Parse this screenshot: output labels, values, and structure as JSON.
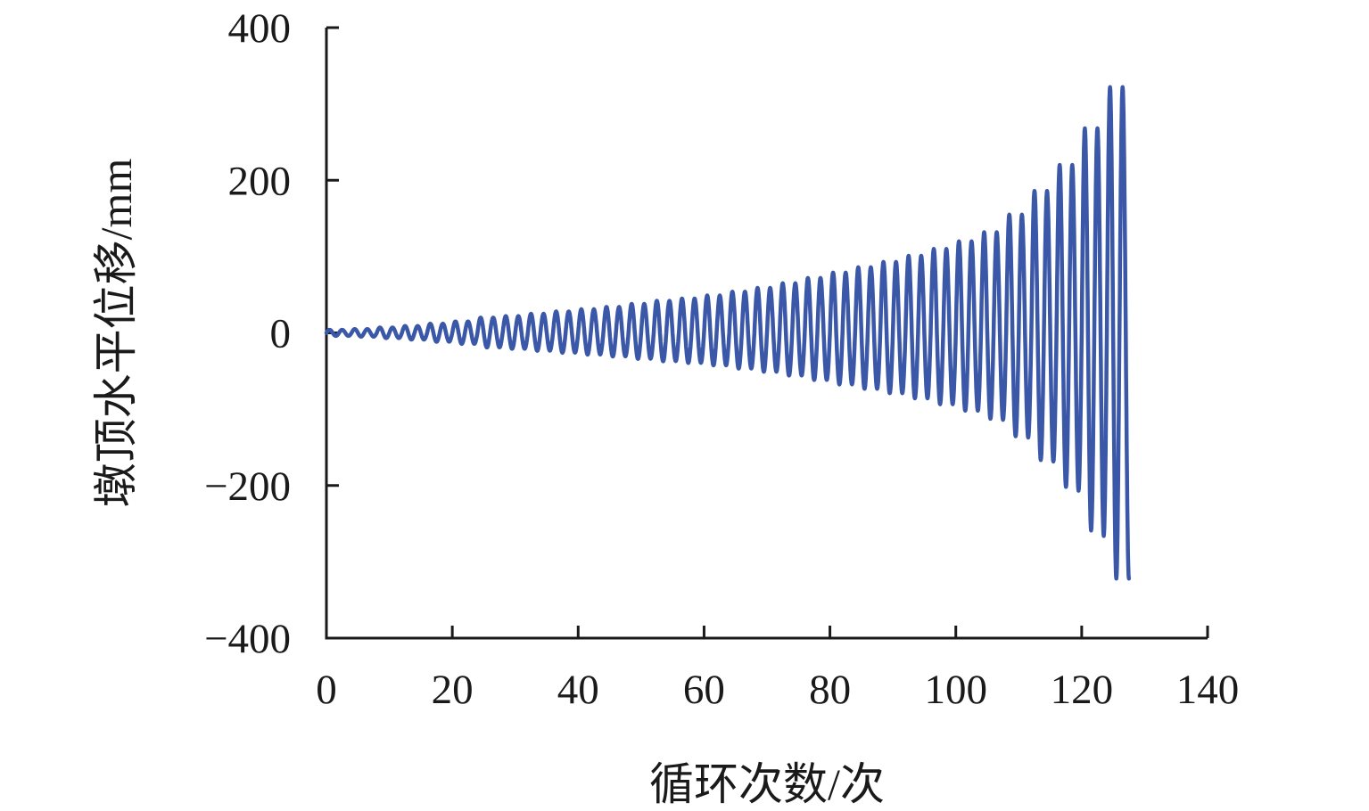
{
  "chart_data": {
    "type": "line",
    "title": "",
    "xlabel": "循环次数/次",
    "ylabel": "墩顶水平位移/mm",
    "xlim": [
      0,
      140
    ],
    "ylim": [
      -400,
      400
    ],
    "xticks": [
      0,
      20,
      40,
      60,
      80,
      100,
      120,
      140
    ],
    "yticks": [
      400,
      200,
      0,
      -200,
      -400
    ],
    "grid": false,
    "legend": null,
    "background": "#ffffff",
    "axes_color": "#1a1a1a",
    "series": [
      {
        "name": "墩顶水平位移",
        "color": "#3b57a8",
        "waveform": "sinusoid, period 2 cycles; amplitude held constant for 2 consecutive oscillations (4 cycle units) per loading level, then increased; trace ends on final negative excursion",
        "period_cycles": 2,
        "cycles_per_amplitude_level": 4,
        "x_start": 0,
        "x_end": 127.5,
        "amplitude_levels_mm": [
          4,
          5,
          7,
          9,
          12,
          15,
          20,
          22,
          25,
          28,
          31,
          34,
          38,
          42,
          45,
          49,
          54,
          59,
          65,
          72,
          79,
          86,
          93,
          101,
          110,
          120,
          132,
          155,
          186,
          220,
          268,
          322
        ],
        "negative_scale_points": [
          [
            0,
            1.0
          ],
          [
            30,
            0.95
          ],
          [
            60,
            0.87
          ],
          [
            90,
            0.85
          ],
          [
            105,
            0.85
          ],
          [
            118,
            0.92
          ],
          [
            124,
            1.0
          ],
          [
            128,
            1.0
          ]
        ],
        "peak_positive_mm": 322,
        "peak_negative_mm": -322
      }
    ]
  }
}
